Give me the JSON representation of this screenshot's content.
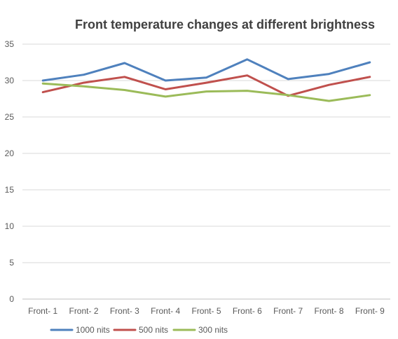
{
  "chart_data": {
    "type": "line",
    "title": "Front temperature changes at different brightness",
    "xlabel": "",
    "ylabel": "",
    "categories": [
      "Front- 1",
      "Front- 2",
      "Front- 3",
      "Front- 4",
      "Front- 5",
      "Front- 6",
      "Front- 7",
      "Front- 8",
      "Front- 9"
    ],
    "ylim": [
      0,
      35
    ],
    "yticks": [
      0,
      5,
      10,
      15,
      20,
      25,
      30,
      35
    ],
    "grid": true,
    "legend_position": "bottom-left",
    "series": [
      {
        "name": "1000 nits",
        "color": "#4f81bd",
        "values": [
          30.0,
          30.8,
          32.4,
          30.0,
          30.4,
          32.9,
          30.2,
          30.9,
          32.5
        ]
      },
      {
        "name": "500 nits",
        "color": "#c0504d",
        "values": [
          28.4,
          29.7,
          30.5,
          28.8,
          29.7,
          30.7,
          27.9,
          29.4,
          30.5
        ]
      },
      {
        "name": "300 nits",
        "color": "#9bbb59",
        "values": [
          29.6,
          29.2,
          28.7,
          27.8,
          28.5,
          28.6,
          28.0,
          27.2,
          28.0
        ]
      }
    ]
  }
}
